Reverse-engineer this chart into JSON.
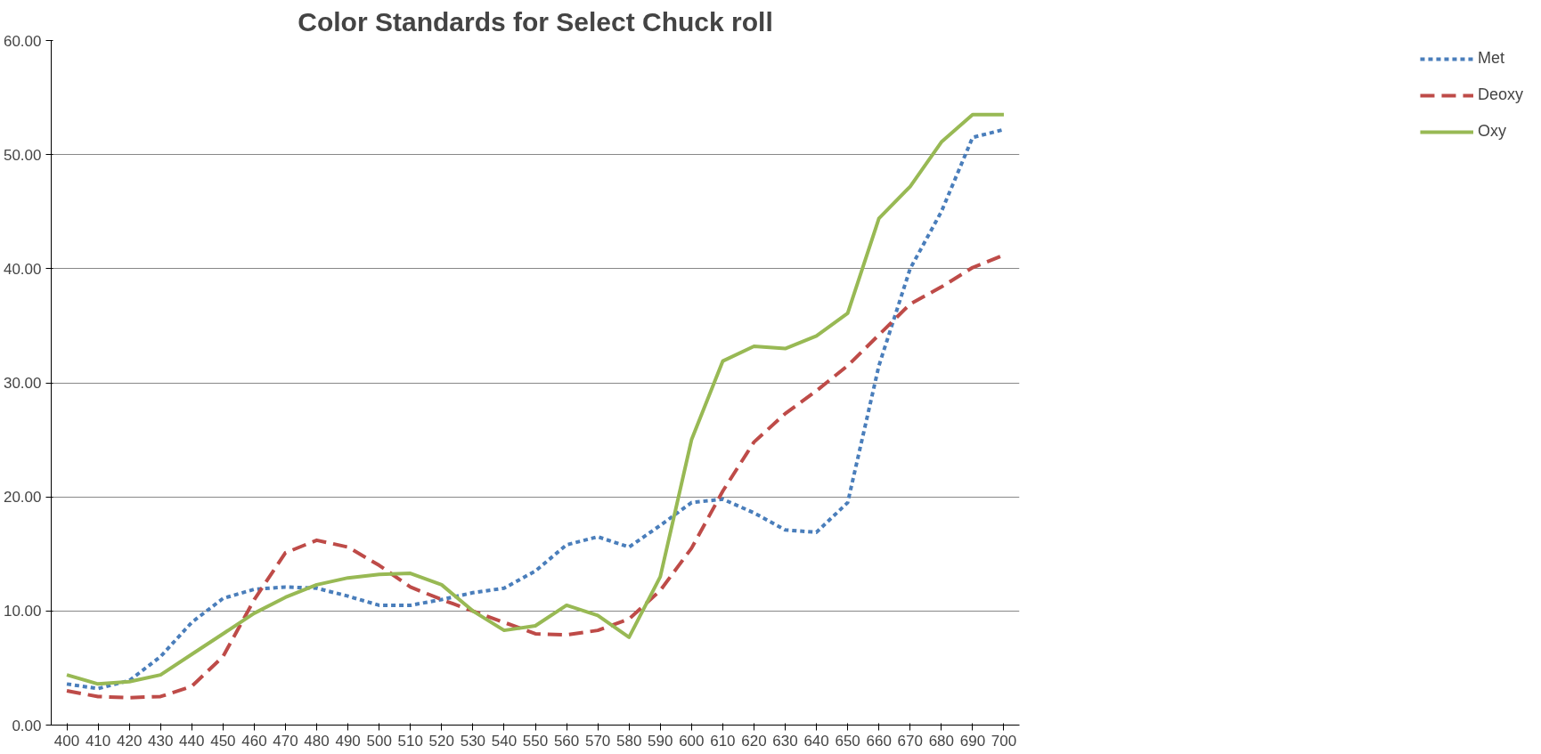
{
  "chart_data": {
    "type": "line",
    "title": "Color Standards for Select Chuck roll",
    "categories": [
      "400",
      "410",
      "420",
      "430",
      "440",
      "450",
      "460",
      "470",
      "480",
      "490",
      "500",
      "510",
      "520",
      "530",
      "540",
      "550",
      "560",
      "570",
      "580",
      "590",
      "600",
      "610",
      "620",
      "630",
      "640",
      "650",
      "660",
      "670",
      "680",
      "690",
      "700"
    ],
    "series": [
      {
        "name": "Met",
        "color": "#4a7ebb",
        "line_style": "dotted",
        "values": [
          3.6,
          3.2,
          3.9,
          6.0,
          9.0,
          11.1,
          11.9,
          12.1,
          12.0,
          11.3,
          10.5,
          10.5,
          11.0,
          11.6,
          12.0,
          13.5,
          15.8,
          16.5,
          15.6,
          17.5,
          19.5,
          19.8,
          18.6,
          17.1,
          16.9,
          19.5,
          31.5,
          40.0,
          45.0,
          51.5,
          52.2
        ]
      },
      {
        "name": "Deoxy",
        "color": "#be4b48",
        "line_style": "dashed",
        "values": [
          3.0,
          2.5,
          2.4,
          2.5,
          3.4,
          6.0,
          11.0,
          15.1,
          16.2,
          15.6,
          14.0,
          12.1,
          11.0,
          10.0,
          9.0,
          8.0,
          7.9,
          8.3,
          9.3,
          11.8,
          15.5,
          20.5,
          24.8,
          27.3,
          29.3,
          31.5,
          34.2,
          36.9,
          38.4,
          40.1,
          41.2
        ]
      },
      {
        "name": "Oxy",
        "color": "#98b954",
        "line_style": "solid",
        "values": [
          4.4,
          3.6,
          3.8,
          4.4,
          6.2,
          8.0,
          9.8,
          11.2,
          12.3,
          12.9,
          13.2,
          13.3,
          12.3,
          10.0,
          8.3,
          8.7,
          10.5,
          9.6,
          7.7,
          13.0,
          25.0,
          31.9,
          33.2,
          33.0,
          34.1,
          36.1,
          44.4,
          47.2,
          51.1,
          53.5,
          53.5
        ]
      }
    ],
    "ylim": [
      0,
      60
    ],
    "yticks": [
      {
        "value": 0,
        "label": "0.00"
      },
      {
        "value": 10,
        "label": "10.00"
      },
      {
        "value": 20,
        "label": "20.00"
      },
      {
        "value": 30,
        "label": "30.00"
      },
      {
        "value": 40,
        "label": "40.00"
      },
      {
        "value": 50,
        "label": "50.00"
      },
      {
        "value": 60,
        "label": "60.00"
      }
    ],
    "grid": "y",
    "legend": "right",
    "marker": "none"
  }
}
